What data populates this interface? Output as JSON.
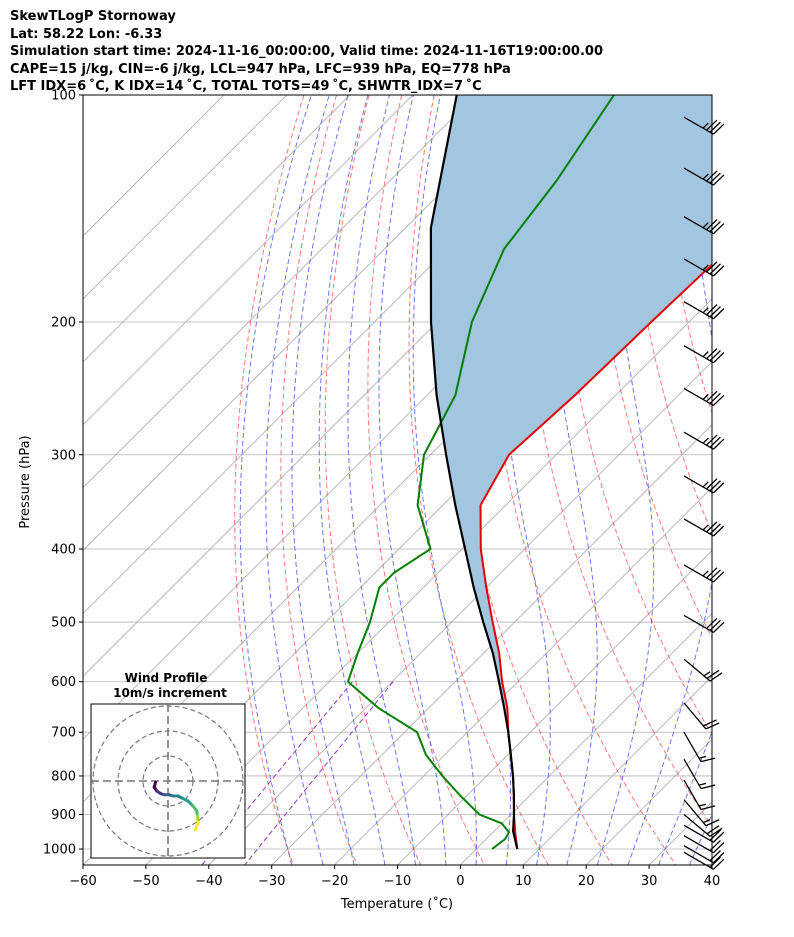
{
  "header": {
    "line1": "SkewTLogP Stornoway",
    "line2": "Lat: 58.22   Lon: -6.33",
    "line3": "Simulation start time: 2024-11-16_00:00:00, Valid time: 2024-11-16T19:00:00.00",
    "line4": "CAPE=15 j/kg, CIN=-6 j/kg, LCL=947 hPa, LFC=939 hPa, EQ=778 hPa",
    "line5": "LFT IDX=6$^\\circ$C, K IDX=14$^\\circ$C, TOTAL TOTS=49$^\\circ$C, SHWTR_IDX=7$^\\circ$C"
  },
  "header_display": {
    "line5": "LFT IDX=6 ˚C, K IDX=14 ˚C, TOTAL TOTS=49 ˚C, SHWTR_IDX=7 ˚C"
  },
  "axes": {
    "xlabel": "Temperature (˚C)",
    "ylabel": "Pressure (hPa)",
    "xticks": [
      "−60",
      "−50",
      "−40",
      "−30",
      "−20",
      "−10",
      "0",
      "10",
      "20",
      "30",
      "40"
    ],
    "yticks": [
      "100",
      "200",
      "300",
      "400",
      "500",
      "600",
      "700",
      "800",
      "900",
      "1000"
    ]
  },
  "hodograph": {
    "title": "Wind Profile",
    "subtitle": "10m/s increment"
  },
  "colors": {
    "temperature": "#e50000",
    "dewpoint": "#008000",
    "parcel": "#000000",
    "cape_fill": "#a3c6e0",
    "dry_adiabat": "#ff5555",
    "moist_adiabat": "#4455ee",
    "mixing_ratio": "#9933cc",
    "isotherm": "#aaaaaa"
  },
  "chart_data": {
    "type": "line",
    "title": "SkewTLogP Stornoway",
    "xlabel": "Temperature (˚C)",
    "ylabel": "Pressure (hPa)",
    "xlim": [
      -60,
      40
    ],
    "ylim": [
      1050,
      100
    ],
    "y_scale": "log",
    "skew": "skew-T (isotherms tilted 45°)",
    "grid": true,
    "series": [
      {
        "name": "Temperature",
        "pressure": [
          1000,
          950,
          900,
          850,
          800,
          750,
          700,
          650,
          600,
          550,
          500,
          450,
          400,
          350,
          300,
          250,
          200,
          170,
          150,
          130,
          115,
          105,
          100
        ],
        "temperature": [
          6.5,
          3.5,
          0.5,
          -2.5,
          -5.8,
          -9.5,
          -13.5,
          -17.5,
          -22.5,
          -27.5,
          -33.5,
          -40,
          -47,
          -54,
          -57.5,
          -56.5,
          -56,
          -55.5,
          -55,
          -54.5,
          -54,
          -54.5,
          -54
        ]
      },
      {
        "name": "Dewpoint",
        "pressure": [
          1000,
          970,
          950,
          925,
          900,
          850,
          800,
          750,
          700,
          650,
          600,
          550,
          500,
          450,
          430,
          400,
          350,
          300,
          250,
          200,
          160,
          130,
          100
        ],
        "dewpoint": [
          2.5,
          3,
          2.5,
          0,
          -5,
          -11,
          -17,
          -23,
          -28,
          -38,
          -47,
          -50,
          -53,
          -57,
          -57,
          -55,
          -64,
          -71,
          -75.5,
          -84.5,
          -91,
          -93.5,
          -98
        ]
      },
      {
        "name": "Parcel",
        "pressure": [
          1000,
          947,
          900,
          850,
          800,
          750,
          700,
          650,
          600,
          550,
          500,
          450,
          400,
          350,
          300,
          250,
          200,
          150,
          100
        ],
        "temperature": [
          6.5,
          3.0,
          0.5,
          -2.5,
          -5.8,
          -9.5,
          -13.5,
          -18,
          -23,
          -28.5,
          -35,
          -42,
          -49.5,
          -58,
          -67.5,
          -78.5,
          -91,
          -106,
          -123
        ]
      }
    ],
    "wind_barbs": {
      "pressure": [
        107,
        125,
        145,
        165,
        188,
        215,
        245,
        280,
        320,
        365,
        420,
        490,
        560,
        640,
        700,
        760,
        810,
        860,
        900,
        930,
        960,
        990,
        1010
      ],
      "direction_deg": [
        300,
        300,
        300,
        300,
        300,
        300,
        300,
        300,
        300,
        300,
        300,
        300,
        310,
        320,
        330,
        330,
        330,
        320,
        310,
        300,
        300,
        300,
        300
      ],
      "speed_kt": [
        35,
        35,
        35,
        35,
        35,
        35,
        35,
        35,
        35,
        35,
        35,
        30,
        25,
        20,
        15,
        15,
        15,
        15,
        20,
        20,
        20,
        20,
        20
      ]
    },
    "hodograph": {
      "ring_increment": "10 m/s",
      "u": [
        -5,
        -5.5,
        -4.5,
        -3,
        -1.5,
        0.5,
        2,
        4,
        6,
        8,
        10,
        11.5,
        11.8,
        12,
        12,
        11.5,
        11
      ],
      "v": [
        -0.5,
        -2.5,
        -4,
        -5,
        -5.5,
        -5.5,
        -6,
        -6,
        -7,
        -8,
        -10,
        -12,
        -14,
        -15.5,
        -16.5,
        -18,
        -19.5
      ]
    }
  }
}
